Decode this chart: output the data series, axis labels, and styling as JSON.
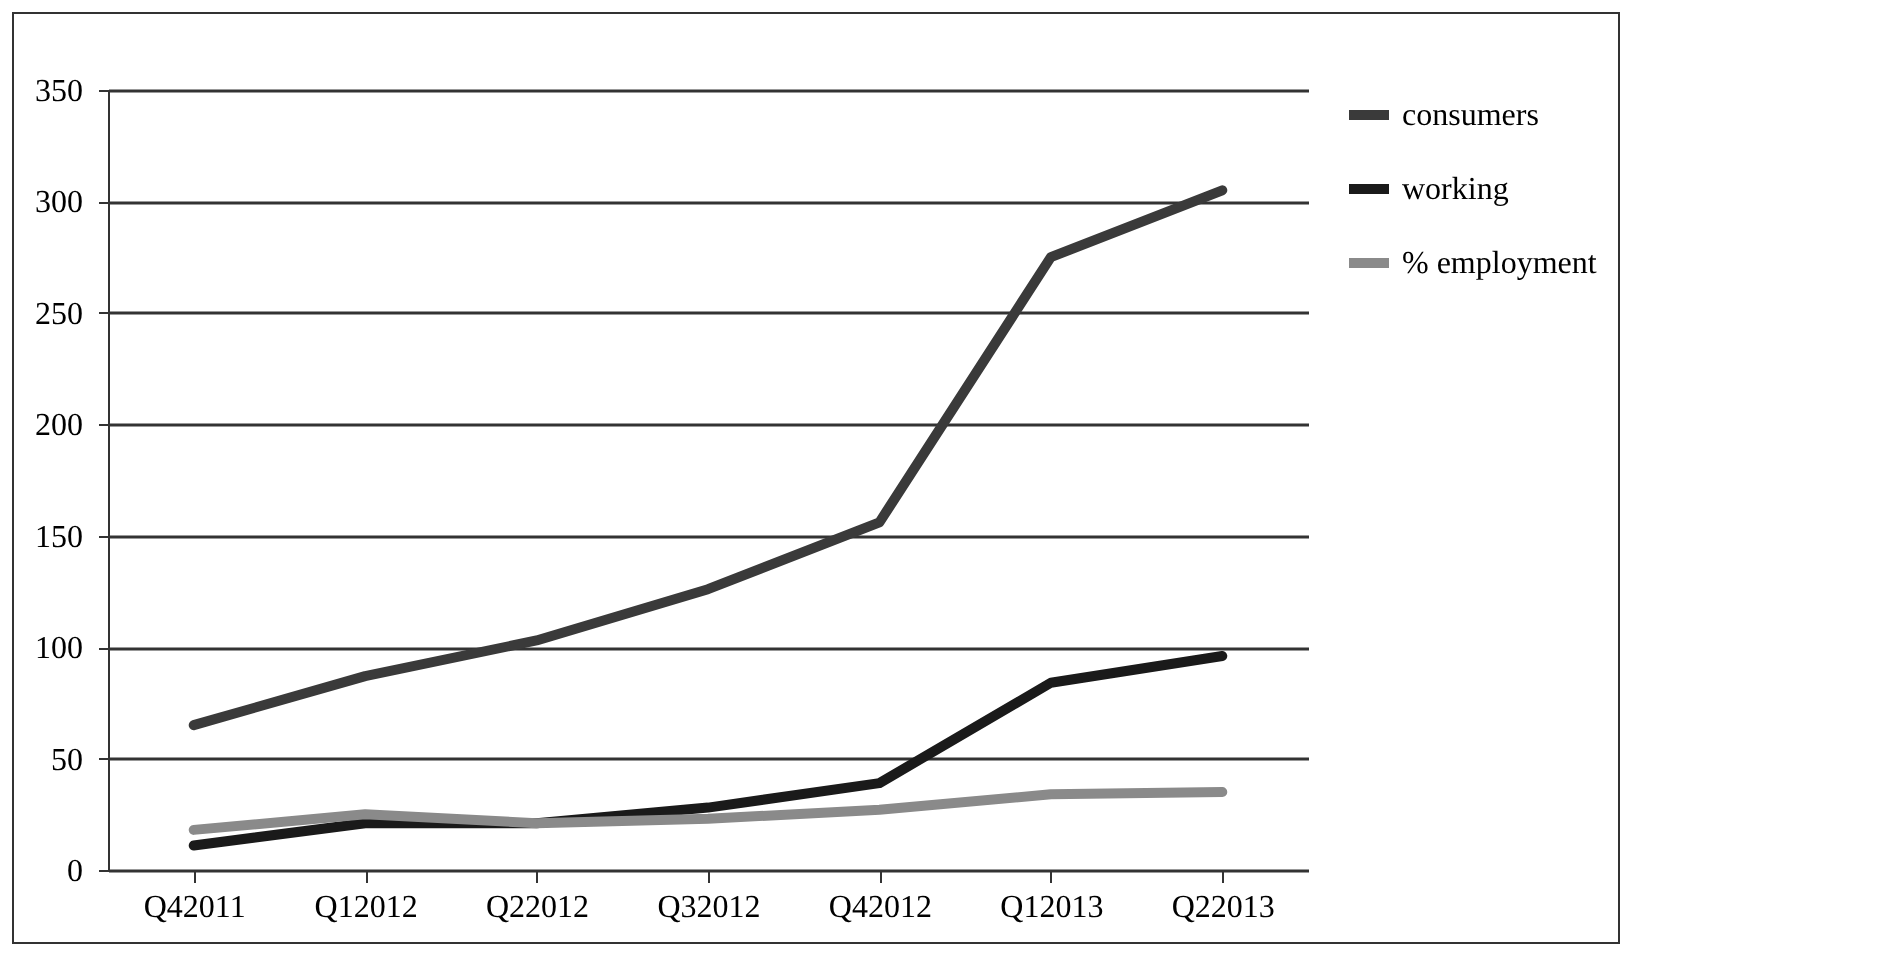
{
  "chart_data": {
    "type": "line",
    "categories": [
      "Q42011",
      "Q12012",
      "Q22012",
      "Q32012",
      "Q42012",
      "Q12013",
      "Q22013"
    ],
    "series": [
      {
        "name": "consumers",
        "color": "#3a3a3a",
        "values": [
          65,
          87,
          103,
          126,
          156,
          275,
          305
        ]
      },
      {
        "name": "working",
        "color": "#1a1a1a",
        "values": [
          11,
          21,
          21,
          28,
          39,
          84,
          96
        ]
      },
      {
        "name": "% employment",
        "color": "#8a8a8a",
        "values": [
          18,
          25,
          21,
          23,
          27,
          34,
          35
        ]
      }
    ],
    "ylim": [
      0,
      350
    ],
    "yticks": [
      0,
      50,
      100,
      150,
      200,
      250,
      300,
      350
    ],
    "grid": "y",
    "legend": "right",
    "marker": "none",
    "line_style": "solid"
  }
}
